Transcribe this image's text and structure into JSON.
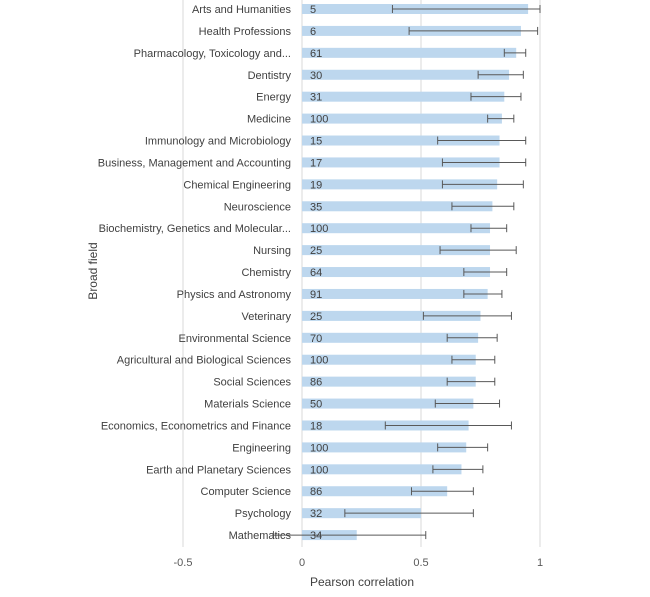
{
  "chart_data": {
    "type": "bar",
    "orientation": "horizontal",
    "xlabel": "Pearson correlation",
    "ylabel": "Broad field",
    "xlim": [
      -0.5,
      1
    ],
    "xticks": [
      "-0.5",
      "0",
      "0.5",
      "1"
    ],
    "grid": "vertical",
    "bar_color": "#bdd7ee",
    "errorbar_color": "#595959",
    "categories": [
      "Arts and Humanities",
      "Health Professions",
      "Pharmacology, Toxicology and...",
      "Dentistry",
      "Energy",
      "Medicine",
      "Immunology and Microbiology",
      "Business, Management and Accounting",
      "Chemical Engineering",
      "Neuroscience",
      "Biochemistry, Genetics and Molecular...",
      "Nursing",
      "Chemistry",
      "Physics and Astronomy",
      "Veterinary",
      "Environmental Science",
      "Agricultural and Biological Sciences",
      "Social Sciences",
      "Materials Science",
      "Economics, Econometrics and Finance",
      "Engineering",
      "Earth and Planetary Sciences",
      "Computer Science",
      "Psychology",
      "Mathematics"
    ],
    "counts": [
      "5",
      "6",
      "61",
      "30",
      "31",
      "100",
      "15",
      "17",
      "19",
      "35",
      "100",
      "25",
      "64",
      "91",
      "25",
      "70",
      "100",
      "86",
      "50",
      "18",
      "100",
      "100",
      "86",
      "32",
      "34"
    ],
    "values": [
      0.95,
      0.92,
      0.9,
      0.87,
      0.85,
      0.84,
      0.83,
      0.83,
      0.82,
      0.8,
      0.79,
      0.79,
      0.79,
      0.78,
      0.75,
      0.74,
      0.73,
      0.73,
      0.72,
      0.7,
      0.69,
      0.67,
      0.61,
      0.5,
      0.23
    ],
    "error_low": [
      0.38,
      0.45,
      0.85,
      0.74,
      0.71,
      0.78,
      0.57,
      0.59,
      0.59,
      0.63,
      0.71,
      0.58,
      0.68,
      0.68,
      0.51,
      0.61,
      0.63,
      0.61,
      0.56,
      0.35,
      0.57,
      0.55,
      0.46,
      0.18,
      -0.12
    ],
    "error_high": [
      1.0,
      0.99,
      0.94,
      0.93,
      0.92,
      0.89,
      0.94,
      0.94,
      0.93,
      0.89,
      0.86,
      0.9,
      0.86,
      0.84,
      0.88,
      0.82,
      0.81,
      0.81,
      0.83,
      0.88,
      0.78,
      0.76,
      0.72,
      0.72,
      0.52
    ]
  }
}
